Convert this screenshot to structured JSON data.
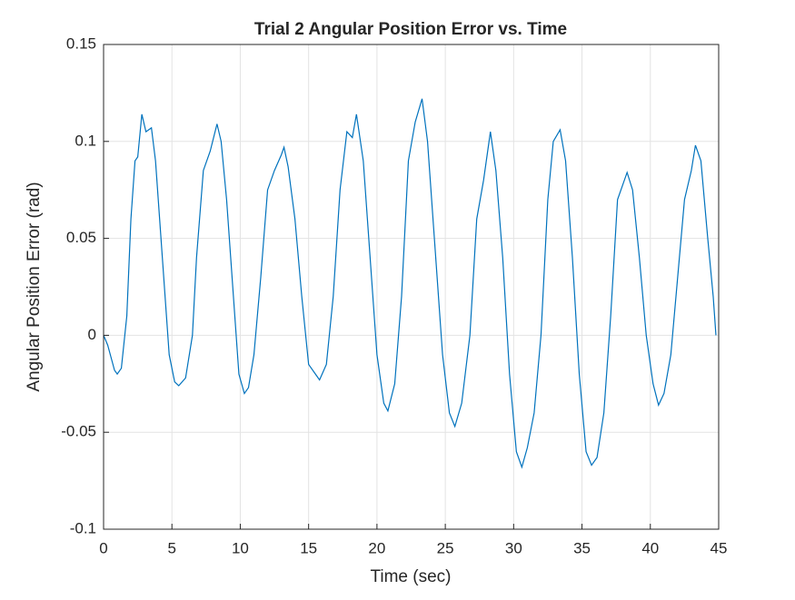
{
  "chart_data": {
    "type": "line",
    "title": "Trial 2 Angular Position Error vs. Time",
    "x_label": "Time (sec)",
    "y_label": "Angular Position Error (rad)",
    "x": [
      0,
      0.3,
      0.8,
      1.0,
      1.3,
      1.7,
      2.0,
      2.3,
      2.5,
      2.8,
      3.1,
      3.5,
      3.8,
      4.3,
      4.8,
      5.2,
      5.5,
      6.0,
      6.5,
      6.8,
      7.3,
      7.8,
      8.3,
      8.6,
      9.0,
      9.5,
      9.9,
      10.3,
      10.6,
      11.0,
      11.5,
      12.0,
      12.5,
      13.0,
      13.2,
      13.5,
      14.0,
      14.5,
      15.0,
      15.5,
      15.8,
      16.3,
      16.8,
      17.3,
      17.8,
      18.2,
      18.5,
      19.0,
      19.5,
      20.0,
      20.5,
      20.8,
      21.3,
      21.8,
      22.3,
      22.8,
      23.3,
      23.7,
      24.2,
      24.8,
      25.3,
      25.7,
      26.2,
      26.8,
      27.3,
      27.8,
      28.3,
      28.7,
      29.2,
      29.7,
      30.2,
      30.6,
      31.0,
      31.5,
      32.0,
      32.5,
      32.9,
      33.4,
      33.8,
      34.3,
      34.8,
      35.3,
      35.7,
      36.1,
      36.6,
      37.1,
      37.6,
      38.0,
      38.3,
      38.7,
      39.2,
      39.7,
      40.2,
      40.6,
      41.0,
      41.5,
      42.0,
      42.5,
      43.0,
      43.3,
      43.7,
      44.2,
      44.6,
      44.8
    ],
    "series": [
      {
        "name": "Angular Position Error",
        "color": "#0072bd",
        "values": [
          0,
          -0.005,
          -0.018,
          -0.02,
          -0.017,
          0.01,
          0.06,
          0.09,
          0.092,
          0.114,
          0.105,
          0.107,
          0.09,
          0.04,
          -0.01,
          -0.024,
          -0.026,
          -0.022,
          0.0,
          0.04,
          0.085,
          0.095,
          0.109,
          0.1,
          0.07,
          0.02,
          -0.02,
          -0.03,
          -0.027,
          -0.01,
          0.03,
          0.075,
          0.085,
          0.093,
          0.097,
          0.087,
          0.06,
          0.02,
          -0.015,
          -0.02,
          -0.023,
          -0.015,
          0.02,
          0.075,
          0.105,
          0.102,
          0.114,
          0.09,
          0.04,
          -0.01,
          -0.035,
          -0.039,
          -0.025,
          0.02,
          0.09,
          0.11,
          0.122,
          0.1,
          0.05,
          -0.01,
          -0.04,
          -0.047,
          -0.035,
          0.0,
          0.06,
          0.08,
          0.105,
          0.085,
          0.04,
          -0.02,
          -0.06,
          -0.068,
          -0.058,
          -0.04,
          0.0,
          0.07,
          0.1,
          0.106,
          0.09,
          0.04,
          -0.02,
          -0.06,
          -0.067,
          -0.063,
          -0.04,
          0.01,
          0.07,
          0.078,
          0.084,
          0.075,
          0.04,
          0.0,
          -0.025,
          -0.036,
          -0.03,
          -0.01,
          0.03,
          0.07,
          0.085,
          0.098,
          0.09,
          0.05,
          0.02,
          0.0
        ]
      }
    ],
    "xlim": [
      0,
      45
    ],
    "xticks": [
      0,
      5,
      10,
      15,
      20,
      25,
      30,
      35,
      40,
      45
    ],
    "ylim": [
      -0.1,
      0.15
    ],
    "yticks": [
      -0.1,
      -0.05,
      0,
      0.05,
      0.1,
      0.15
    ],
    "grid": true
  }
}
